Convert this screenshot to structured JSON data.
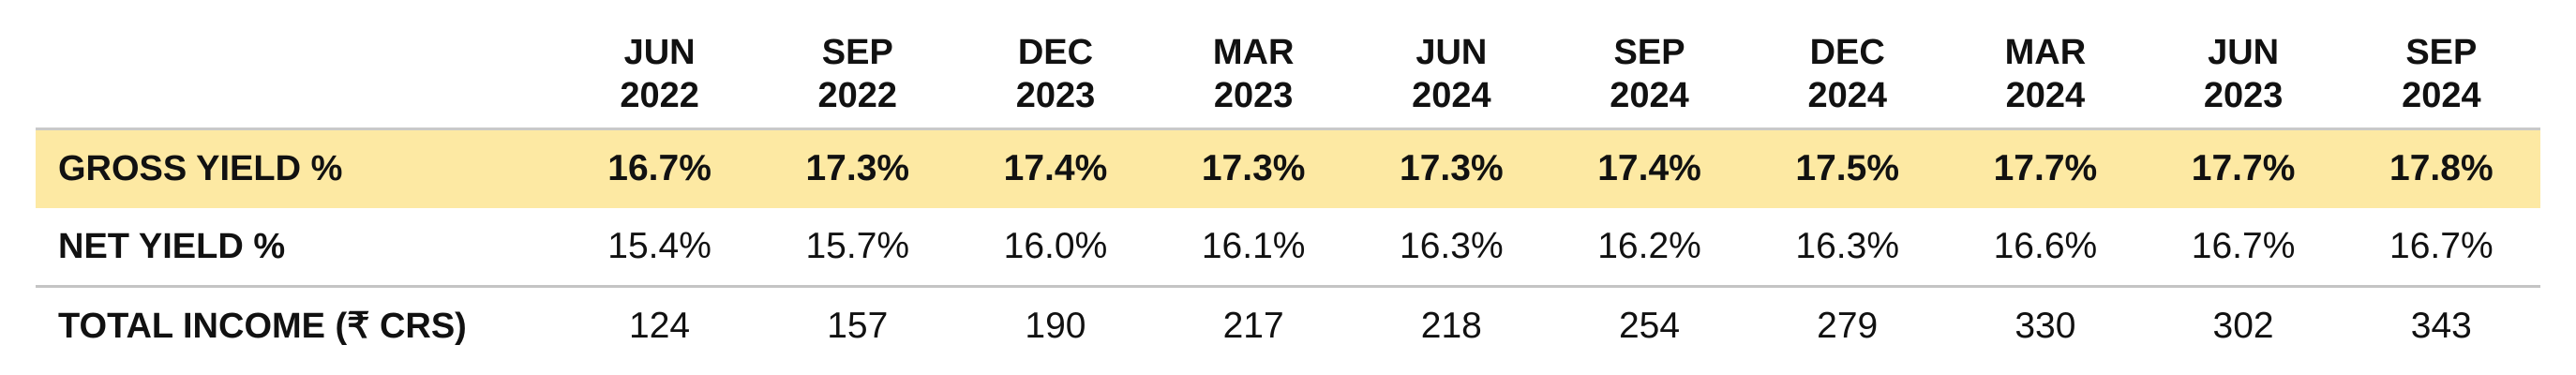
{
  "table": {
    "columns": [
      {
        "month": "JUN",
        "year": "2022"
      },
      {
        "month": "SEP",
        "year": "2022"
      },
      {
        "month": "DEC",
        "year": "2023"
      },
      {
        "month": "MAR",
        "year": "2023"
      },
      {
        "month": "JUN",
        "year": "2024"
      },
      {
        "month": "SEP",
        "year": "2024"
      },
      {
        "month": "DEC",
        "year": "2024"
      },
      {
        "month": "MAR",
        "year": "2024"
      },
      {
        "month": "JUN",
        "year": "2023"
      },
      {
        "month": "SEP",
        "year": "2024"
      }
    ],
    "rows": [
      {
        "label": "GROSS YIELD %",
        "highlight": true,
        "values": [
          "16.7%",
          "17.3%",
          "17.4%",
          "17.3%",
          "17.3%",
          "17.4%",
          "17.5%",
          "17.7%",
          "17.7%",
          "17.8%"
        ]
      },
      {
        "label": "NET YIELD %",
        "highlight": false,
        "values": [
          "15.4%",
          "15.7%",
          "16.0%",
          "16.1%",
          "16.3%",
          "16.2%",
          "16.3%",
          "16.6%",
          "16.7%",
          "16.7%"
        ]
      },
      {
        "label": "TOTAL INCOME (₹ CRS)",
        "highlight": false,
        "values": [
          "124",
          "157",
          "190",
          "217",
          "218",
          "254",
          "279",
          "330",
          "302",
          "343"
        ]
      }
    ]
  },
  "colors": {
    "highlight_row": "#fde9a3",
    "rule": "#c4c4c4",
    "text": "#111111"
  }
}
